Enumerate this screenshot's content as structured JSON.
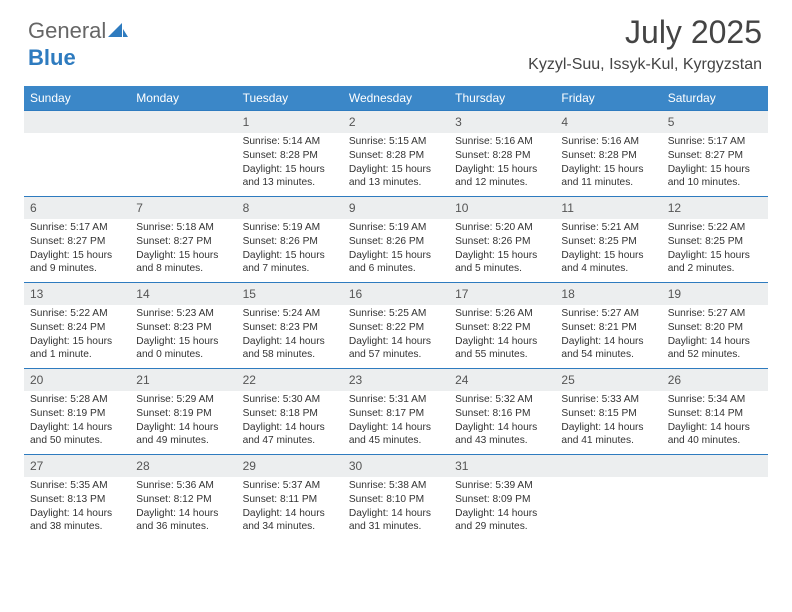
{
  "logo": {
    "text1": "General",
    "text2": "Blue"
  },
  "title": "July 2025",
  "location": "Kyzyl-Suu, Issyk-Kul, Kyrgyzstan",
  "headers": [
    "Sunday",
    "Monday",
    "Tuesday",
    "Wednesday",
    "Thursday",
    "Friday",
    "Saturday"
  ],
  "header_bg": "#3b87c8",
  "header_fg": "#ffffff",
  "daynum_bg": "#eceeef",
  "rule_color": "#2e7bbf",
  "weeks": [
    [
      {
        "n": "",
        "l1": "",
        "l2": "",
        "l3": "",
        "l4": ""
      },
      {
        "n": "",
        "l1": "",
        "l2": "",
        "l3": "",
        "l4": ""
      },
      {
        "n": "1",
        "l1": "Sunrise: 5:14 AM",
        "l2": "Sunset: 8:28 PM",
        "l3": "Daylight: 15 hours",
        "l4": "and 13 minutes."
      },
      {
        "n": "2",
        "l1": "Sunrise: 5:15 AM",
        "l2": "Sunset: 8:28 PM",
        "l3": "Daylight: 15 hours",
        "l4": "and 13 minutes."
      },
      {
        "n": "3",
        "l1": "Sunrise: 5:16 AM",
        "l2": "Sunset: 8:28 PM",
        "l3": "Daylight: 15 hours",
        "l4": "and 12 minutes."
      },
      {
        "n": "4",
        "l1": "Sunrise: 5:16 AM",
        "l2": "Sunset: 8:28 PM",
        "l3": "Daylight: 15 hours",
        "l4": "and 11 minutes."
      },
      {
        "n": "5",
        "l1": "Sunrise: 5:17 AM",
        "l2": "Sunset: 8:27 PM",
        "l3": "Daylight: 15 hours",
        "l4": "and 10 minutes."
      }
    ],
    [
      {
        "n": "6",
        "l1": "Sunrise: 5:17 AM",
        "l2": "Sunset: 8:27 PM",
        "l3": "Daylight: 15 hours",
        "l4": "and 9 minutes."
      },
      {
        "n": "7",
        "l1": "Sunrise: 5:18 AM",
        "l2": "Sunset: 8:27 PM",
        "l3": "Daylight: 15 hours",
        "l4": "and 8 minutes."
      },
      {
        "n": "8",
        "l1": "Sunrise: 5:19 AM",
        "l2": "Sunset: 8:26 PM",
        "l3": "Daylight: 15 hours",
        "l4": "and 7 minutes."
      },
      {
        "n": "9",
        "l1": "Sunrise: 5:19 AM",
        "l2": "Sunset: 8:26 PM",
        "l3": "Daylight: 15 hours",
        "l4": "and 6 minutes."
      },
      {
        "n": "10",
        "l1": "Sunrise: 5:20 AM",
        "l2": "Sunset: 8:26 PM",
        "l3": "Daylight: 15 hours",
        "l4": "and 5 minutes."
      },
      {
        "n": "11",
        "l1": "Sunrise: 5:21 AM",
        "l2": "Sunset: 8:25 PM",
        "l3": "Daylight: 15 hours",
        "l4": "and 4 minutes."
      },
      {
        "n": "12",
        "l1": "Sunrise: 5:22 AM",
        "l2": "Sunset: 8:25 PM",
        "l3": "Daylight: 15 hours",
        "l4": "and 2 minutes."
      }
    ],
    [
      {
        "n": "13",
        "l1": "Sunrise: 5:22 AM",
        "l2": "Sunset: 8:24 PM",
        "l3": "Daylight: 15 hours",
        "l4": "and 1 minute."
      },
      {
        "n": "14",
        "l1": "Sunrise: 5:23 AM",
        "l2": "Sunset: 8:23 PM",
        "l3": "Daylight: 15 hours",
        "l4": "and 0 minutes."
      },
      {
        "n": "15",
        "l1": "Sunrise: 5:24 AM",
        "l2": "Sunset: 8:23 PM",
        "l3": "Daylight: 14 hours",
        "l4": "and 58 minutes."
      },
      {
        "n": "16",
        "l1": "Sunrise: 5:25 AM",
        "l2": "Sunset: 8:22 PM",
        "l3": "Daylight: 14 hours",
        "l4": "and 57 minutes."
      },
      {
        "n": "17",
        "l1": "Sunrise: 5:26 AM",
        "l2": "Sunset: 8:22 PM",
        "l3": "Daylight: 14 hours",
        "l4": "and 55 minutes."
      },
      {
        "n": "18",
        "l1": "Sunrise: 5:27 AM",
        "l2": "Sunset: 8:21 PM",
        "l3": "Daylight: 14 hours",
        "l4": "and 54 minutes."
      },
      {
        "n": "19",
        "l1": "Sunrise: 5:27 AM",
        "l2": "Sunset: 8:20 PM",
        "l3": "Daylight: 14 hours",
        "l4": "and 52 minutes."
      }
    ],
    [
      {
        "n": "20",
        "l1": "Sunrise: 5:28 AM",
        "l2": "Sunset: 8:19 PM",
        "l3": "Daylight: 14 hours",
        "l4": "and 50 minutes."
      },
      {
        "n": "21",
        "l1": "Sunrise: 5:29 AM",
        "l2": "Sunset: 8:19 PM",
        "l3": "Daylight: 14 hours",
        "l4": "and 49 minutes."
      },
      {
        "n": "22",
        "l1": "Sunrise: 5:30 AM",
        "l2": "Sunset: 8:18 PM",
        "l3": "Daylight: 14 hours",
        "l4": "and 47 minutes."
      },
      {
        "n": "23",
        "l1": "Sunrise: 5:31 AM",
        "l2": "Sunset: 8:17 PM",
        "l3": "Daylight: 14 hours",
        "l4": "and 45 minutes."
      },
      {
        "n": "24",
        "l1": "Sunrise: 5:32 AM",
        "l2": "Sunset: 8:16 PM",
        "l3": "Daylight: 14 hours",
        "l4": "and 43 minutes."
      },
      {
        "n": "25",
        "l1": "Sunrise: 5:33 AM",
        "l2": "Sunset: 8:15 PM",
        "l3": "Daylight: 14 hours",
        "l4": "and 41 minutes."
      },
      {
        "n": "26",
        "l1": "Sunrise: 5:34 AM",
        "l2": "Sunset: 8:14 PM",
        "l3": "Daylight: 14 hours",
        "l4": "and 40 minutes."
      }
    ],
    [
      {
        "n": "27",
        "l1": "Sunrise: 5:35 AM",
        "l2": "Sunset: 8:13 PM",
        "l3": "Daylight: 14 hours",
        "l4": "and 38 minutes."
      },
      {
        "n": "28",
        "l1": "Sunrise: 5:36 AM",
        "l2": "Sunset: 8:12 PM",
        "l3": "Daylight: 14 hours",
        "l4": "and 36 minutes."
      },
      {
        "n": "29",
        "l1": "Sunrise: 5:37 AM",
        "l2": "Sunset: 8:11 PM",
        "l3": "Daylight: 14 hours",
        "l4": "and 34 minutes."
      },
      {
        "n": "30",
        "l1": "Sunrise: 5:38 AM",
        "l2": "Sunset: 8:10 PM",
        "l3": "Daylight: 14 hours",
        "l4": "and 31 minutes."
      },
      {
        "n": "31",
        "l1": "Sunrise: 5:39 AM",
        "l2": "Sunset: 8:09 PM",
        "l3": "Daylight: 14 hours",
        "l4": "and 29 minutes."
      },
      {
        "n": "",
        "l1": "",
        "l2": "",
        "l3": "",
        "l4": ""
      },
      {
        "n": "",
        "l1": "",
        "l2": "",
        "l3": "",
        "l4": ""
      }
    ]
  ]
}
